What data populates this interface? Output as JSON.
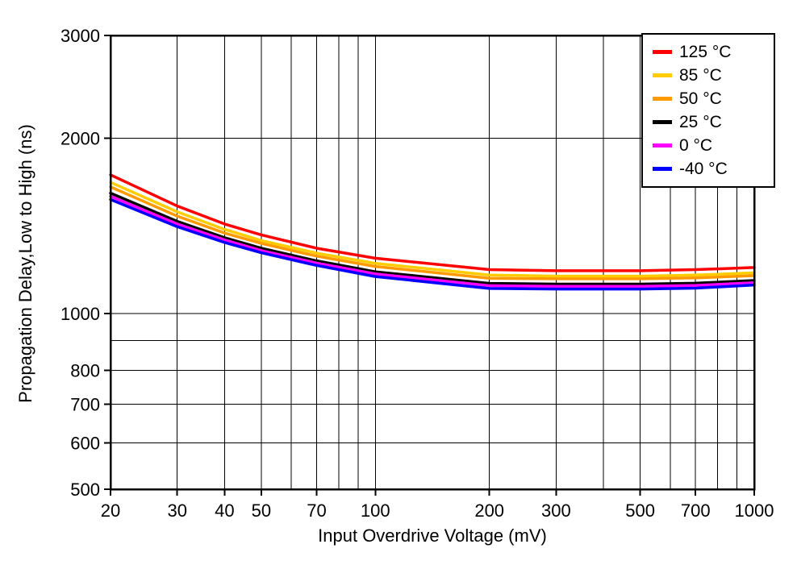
{
  "chart_data": {
    "type": "line",
    "title": "",
    "xlabel": "Input Overdrive Voltage (mV)",
    "ylabel": "Propagation Delay,Low to High (ns)",
    "x_scale": "log",
    "y_scale": "log",
    "xlim": [
      20,
      1000
    ],
    "ylim": [
      500,
      3000
    ],
    "grid": true,
    "legend_position": "top-right",
    "x_tick_labels": [
      20,
      30,
      40,
      50,
      70,
      100,
      200,
      300,
      500,
      700,
      1000
    ],
    "x_gridlines": [
      20,
      30,
      40,
      50,
      60,
      70,
      80,
      90,
      100,
      200,
      300,
      400,
      500,
      600,
      700,
      800,
      900,
      1000
    ],
    "y_tick_labels": [
      500,
      600,
      700,
      800,
      1000,
      2000,
      3000
    ],
    "y_gridlines": [
      500,
      600,
      700,
      800,
      900,
      1000,
      2000,
      3000
    ],
    "x": [
      20,
      30,
      40,
      50,
      70,
      100,
      200,
      300,
      500,
      700,
      1000
    ],
    "series": [
      {
        "name": "125 °C",
        "color": "#ff0000",
        "values": [
          1730,
          1530,
          1425,
          1365,
          1295,
          1245,
          1190,
          1185,
          1185,
          1190,
          1200
        ]
      },
      {
        "name": "85 °C",
        "color": "#ffcc00",
        "values": [
          1680,
          1495,
          1395,
          1335,
          1270,
          1220,
          1165,
          1160,
          1160,
          1165,
          1175
        ]
      },
      {
        "name": "50 °C",
        "color": "#ff9900",
        "values": [
          1650,
          1470,
          1375,
          1320,
          1255,
          1205,
          1150,
          1148,
          1148,
          1152,
          1162
        ]
      },
      {
        "name": "25 °C",
        "color": "#000000",
        "values": [
          1610,
          1440,
          1350,
          1295,
          1232,
          1180,
          1127,
          1124,
          1124,
          1128,
          1140
        ]
      },
      {
        "name": "0 °C",
        "color": "#ff00ff",
        "values": [
          1590,
          1425,
          1338,
          1283,
          1221,
          1170,
          1117,
          1114,
          1114,
          1118,
          1130
        ]
      },
      {
        "name": "-40 °C",
        "color": "#0000ff",
        "values": [
          1570,
          1410,
          1325,
          1272,
          1210,
          1158,
          1105,
          1102,
          1102,
          1106,
          1120
        ]
      }
    ]
  }
}
